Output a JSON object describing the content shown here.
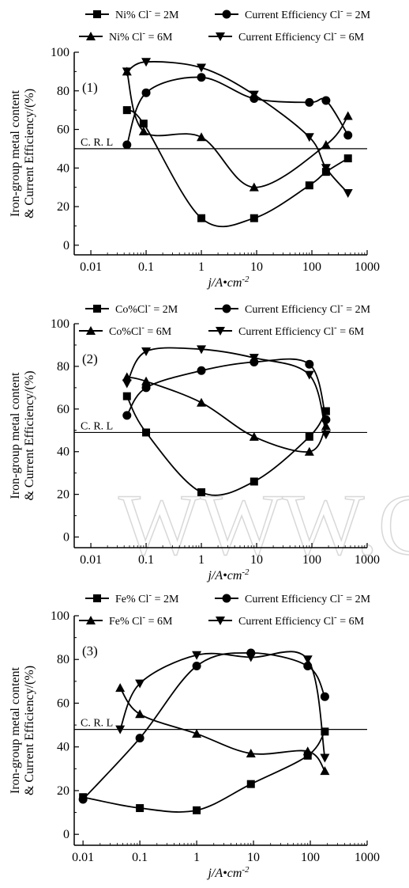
{
  "chart_data": [
    {
      "type": "line",
      "panel_label": "(1)",
      "x_scale": "log",
      "xlim": [
        0.005,
        1000
      ],
      "ylim": [
        -5,
        100
      ],
      "xticks": [
        "0.01",
        "0.1",
        "1",
        "10",
        "100",
        "1000"
      ],
      "yticks": [
        "0",
        "20",
        "40",
        "60",
        "80",
        "100"
      ],
      "xlabel": "j/A•cm⁻²",
      "ylabel_lines": [
        "Iron-group metal content",
        "& Current Efficiency/(%)"
      ],
      "reference_line": {
        "label": "C. R. L",
        "y": 50
      },
      "legend": [
        [
          "Ni% Cl⁻ = 2M",
          "Current Efficiency Cl⁻ = 2M"
        ],
        [
          "Ni% Cl⁻ = 6M",
          "Current Efficiency Cl⁻ = 6M"
        ]
      ],
      "series": [
        {
          "marker": "square",
          "x": [
            0.045,
            0.09,
            1,
            9,
            90,
            180,
            450
          ],
          "y": [
            70,
            63,
            14,
            14,
            31,
            38,
            45
          ]
        },
        {
          "marker": "circle",
          "x": [
            0.045,
            0.1,
            1,
            9,
            90,
            180,
            450
          ],
          "y": [
            52,
            79,
            87,
            76,
            74,
            75,
            57
          ]
        },
        {
          "marker": "triangle-up",
          "x": [
            0.045,
            0.09,
            1,
            9,
            180,
            450
          ],
          "y": [
            90,
            59,
            56,
            30,
            52,
            67
          ]
        },
        {
          "marker": "triangle-down",
          "x": [
            0.045,
            0.1,
            1,
            9,
            90,
            180,
            450
          ],
          "y": [
            90,
            95,
            92,
            78,
            56,
            40,
            27
          ]
        }
      ]
    },
    {
      "type": "line",
      "panel_label": "(2)",
      "x_scale": "log",
      "xlim": [
        0.005,
        1000
      ],
      "ylim": [
        -5,
        100
      ],
      "xticks": [
        "0.01",
        "0.1",
        "1",
        "10",
        "100",
        "1000"
      ],
      "yticks": [
        "0",
        "20",
        "40",
        "60",
        "80",
        "100"
      ],
      "xlabel": "j/A•cm⁻²",
      "ylabel_lines": [
        "Iron-group metal content",
        "& Current Efficiency/(%)"
      ],
      "reference_line": {
        "label": "C. R. L",
        "y": 49
      },
      "legend": [
        [
          "Co%Cl⁻ = 2M",
          "Current Efficiency Cl⁻ = 2M"
        ],
        [
          "Co%Cl⁻ = 6M",
          "Current Efficiency Cl⁻ = 6M"
        ]
      ],
      "series": [
        {
          "marker": "square",
          "x": [
            0.045,
            0.1,
            1,
            9,
            90,
            180
          ],
          "y": [
            66,
            49,
            21,
            26,
            47,
            59
          ]
        },
        {
          "marker": "circle",
          "x": [
            0.045,
            0.1,
            1,
            9,
            90,
            180
          ],
          "y": [
            57,
            70,
            78,
            82,
            81,
            55
          ]
        },
        {
          "marker": "triangle-up",
          "x": [
            0.045,
            0.1,
            1,
            9,
            90,
            180
          ],
          "y": [
            75,
            73,
            63,
            47,
            40,
            52
          ]
        },
        {
          "marker": "triangle-down",
          "x": [
            0.045,
            0.1,
            1,
            9,
            90,
            180
          ],
          "y": [
            72,
            87,
            88,
            84,
            76,
            48
          ]
        }
      ]
    },
    {
      "type": "line",
      "panel_label": "(3)",
      "x_scale": "log",
      "xlim": [
        0.007,
        1000
      ],
      "ylim": [
        -5,
        100
      ],
      "xticks": [
        "0.01",
        "0.1",
        "1",
        "10",
        "100",
        "1000"
      ],
      "yticks": [
        "0",
        "20",
        "40",
        "60",
        "80",
        "100"
      ],
      "xlabel": "j/A•cm⁻²",
      "ylabel_lines": [
        "Iron-group metal content",
        "& Current Efficiency/(%)"
      ],
      "reference_line": {
        "label": "C. R. L",
        "y": 48
      },
      "legend": [
        [
          "Fe% Cl⁻ = 2M",
          "Current Efficiency Cl⁻ = 2M"
        ],
        [
          "Fe% Cl⁻ = 6M",
          "Current Efficiency Cl⁻ = 6M"
        ]
      ],
      "series": [
        {
          "marker": "square",
          "x": [
            0.01,
            0.1,
            1,
            9,
            90,
            180
          ],
          "y": [
            17,
            12,
            11,
            23,
            36,
            47
          ]
        },
        {
          "marker": "circle",
          "x": [
            0.01,
            0.1,
            1,
            9,
            90,
            180
          ],
          "y": [
            16,
            44,
            77,
            83,
            77,
            63
          ]
        },
        {
          "marker": "triangle-up",
          "x": [
            0.045,
            0.1,
            1,
            9,
            90,
            180
          ],
          "y": [
            67,
            55,
            46,
            37,
            38,
            29
          ]
        },
        {
          "marker": "triangle-down",
          "x": [
            0.045,
            0.1,
            1,
            9,
            90,
            180
          ],
          "y": [
            48,
            69,
            82,
            81,
            80,
            35
          ]
        }
      ]
    }
  ],
  "watermark": "WWW.C"
}
